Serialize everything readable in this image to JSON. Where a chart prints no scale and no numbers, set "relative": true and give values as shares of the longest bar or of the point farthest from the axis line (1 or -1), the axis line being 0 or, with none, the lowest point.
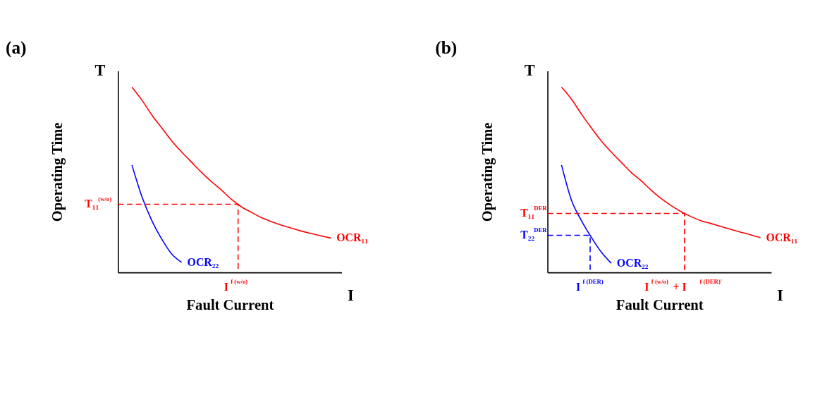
{
  "chart_data": [
    {
      "type": "line",
      "title": "(a)",
      "xlabel": "Fault Current",
      "ylabel": "Operating Time",
      "relative": true,
      "grid": false,
      "categories": [
        null,
        null,
        null,
        null,
        null,
        null,
        null,
        null,
        null,
        null,
        null,
        null,
        null,
        null,
        null,
        null,
        null,
        null,
        null,
        null,
        null
      ],
      "series": [
        {
          "name": "OCR₁₁",
          "color": "#ff0000",
          "values": [
            1.0,
            0.93,
            0.85,
            0.78,
            0.71,
            0.65,
            0.595,
            0.54,
            0.49,
            0.445,
            0.395,
            0.355,
            0.325,
            0.297,
            0.275,
            0.256,
            0.24,
            0.224,
            0.211,
            0.198,
            0.186
          ]
        },
        {
          "name": "OCR₂₂",
          "color": "#0000ff",
          "values": [
            0.58,
            0.41,
            0.28,
            0.18,
            0.1,
            0.055,
            null,
            null,
            null,
            null,
            null,
            null,
            null,
            null,
            null,
            null,
            null,
            null,
            null,
            null,
            null
          ]
        }
      ],
      "ref_lines": [
        {
          "axis": "y",
          "value": 0.368,
          "label": "T₁₁$^{(w/o)}$",
          "color": "#ff0000",
          "line_style": "dashed"
        }
      ],
      "annotations": [
        "T",
        "I",
        "I$^{f (w/o)}$"
      ]
    },
    {
      "type": "line",
      "title": "(b)",
      "xlabel": "Fault Current",
      "ylabel": "Operating Time",
      "relative": true,
      "grid": false,
      "categories": [
        null,
        null,
        null,
        null,
        null,
        null,
        null,
        null,
        null,
        null,
        null,
        null,
        null,
        null,
        null,
        null,
        null,
        null,
        null,
        null,
        null
      ],
      "series": [
        {
          "name": "OCR₁₁",
          "color": "#ff0000",
          "values": [
            1.0,
            0.935,
            0.855,
            0.78,
            0.71,
            0.65,
            0.595,
            0.54,
            0.495,
            0.445,
            0.4,
            0.362,
            0.329,
            0.302,
            0.28,
            0.265,
            0.249,
            0.233,
            0.218,
            0.204,
            0.188
          ]
        },
        {
          "name": "OCR₂₂",
          "color": "#0000ff",
          "values": [
            0.58,
            0.39,
            0.28,
            0.19,
            0.11,
            0.05,
            null,
            null,
            null,
            null,
            null,
            null,
            null,
            null,
            null,
            null,
            null,
            null,
            null,
            null,
            null
          ]
        }
      ],
      "ref_lines": [
        {
          "axis": "y",
          "value": 0.319,
          "label": "T₁₁$^{DER}$",
          "color": "#ff0000",
          "line_style": "dashed"
        },
        {
          "axis": "y",
          "value": 0.201,
          "label": "T₂₂$^{DER}$",
          "color": "#0000ff",
          "line_style": "dashed"
        }
      ],
      "annotations": [
        "T",
        "I",
        "I$^{f (w/o)}$ + I$^{f (DER)'}$",
        "I$^{f (DER)}$"
      ]
    }
  ]
}
